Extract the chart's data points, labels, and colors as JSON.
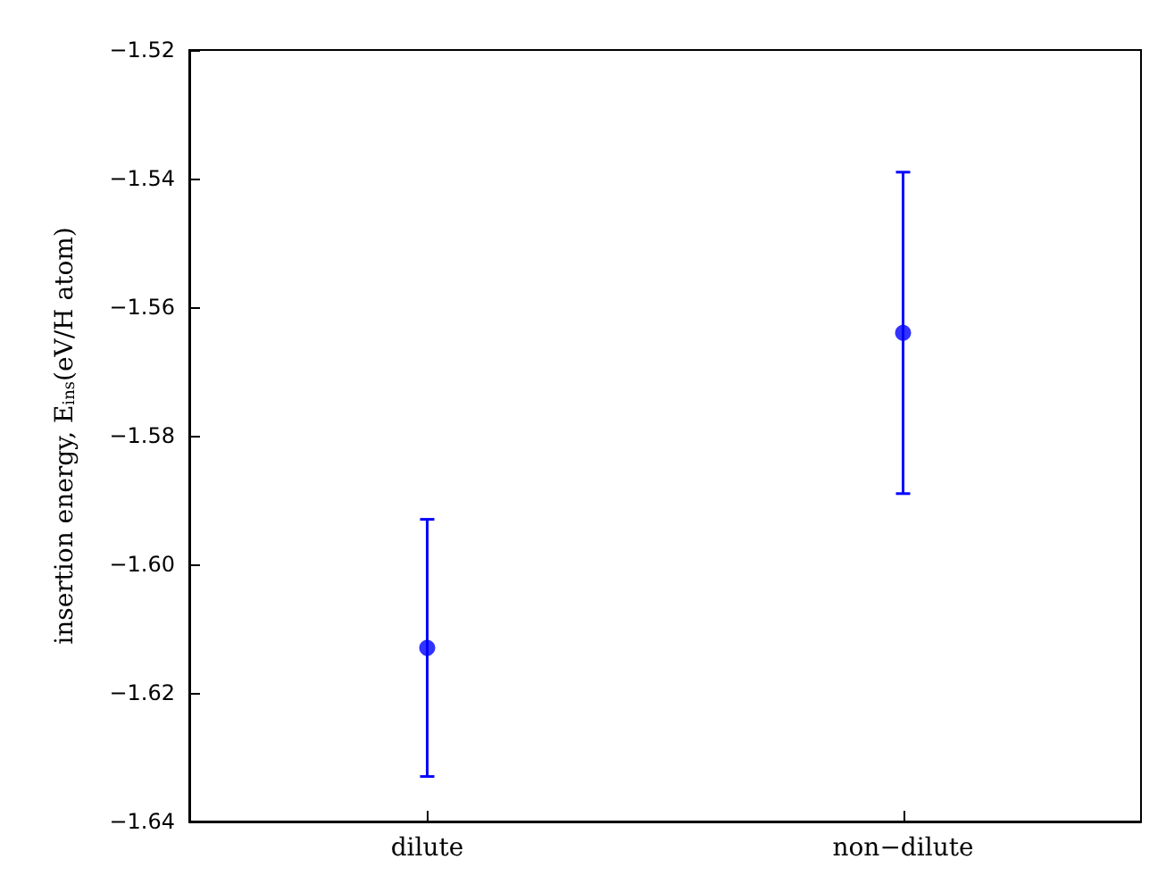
{
  "chart_data": {
    "type": "scatter",
    "ylabel": "insertion energy, E$_{ins}$(eV/H atom)",
    "categories": [
      "dilute",
      "non−dilute"
    ],
    "series": [
      {
        "color": "#0000ff",
        "values": [
          -1.613,
          -1.564
        ],
        "errors": [
          0.02,
          0.025
        ]
      }
    ],
    "ylim": [
      -1.64,
      -1.52
    ],
    "yticks": [
      -1.64,
      -1.62,
      {
        "value": -1.6,
        "label": "−1.60"
      },
      -1.58,
      -1.56,
      -1.54,
      -1.52
    ],
    "grid": false,
    "marker": "circle"
  }
}
